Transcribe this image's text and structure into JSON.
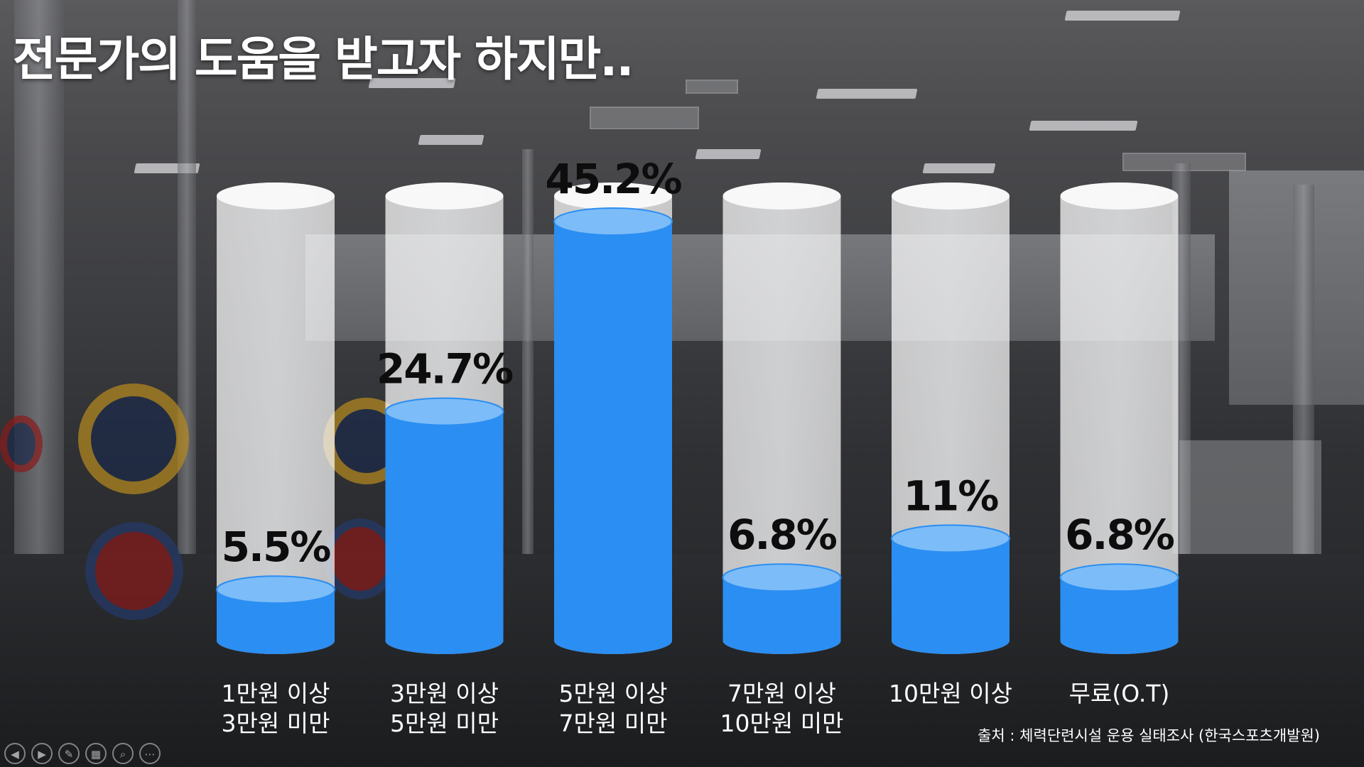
{
  "slide": {
    "title": "전문가의 도움을 받고자 하지만..",
    "source": "출처 : 체력단련시설 운용 실태조사 (한국스포츠개발원)"
  },
  "colors": {
    "fill": "#2b8ef2",
    "fill_top": "#7cbcf8",
    "cylinder_glass": "#f2f3f5",
    "title_text": "#ffffff",
    "value_text": "#0d0d0d"
  },
  "controls": [
    {
      "name": "prev-icon",
      "glyph": "◀"
    },
    {
      "name": "next-icon",
      "glyph": "▶"
    },
    {
      "name": "pen-icon",
      "glyph": "✎"
    },
    {
      "name": "slides-icon",
      "glyph": "▦"
    },
    {
      "name": "zoom-icon",
      "glyph": "⌕"
    },
    {
      "name": "more-icon",
      "glyph": "⋯"
    }
  ],
  "chart_data": {
    "type": "bar",
    "style": "3d-cylinder",
    "categories": [
      [
        "1만원 이상",
        "3만원 미만"
      ],
      [
        "3만원 이상",
        "5만원 미만"
      ],
      [
        "5만원 이상",
        "7만원 미만"
      ],
      [
        "7만원 이상",
        "10만원 미만"
      ],
      [
        "10만원 이상"
      ],
      [
        "무료(O.T)"
      ]
    ],
    "values": [
      5.5,
      24.7,
      45.2,
      6.8,
      11,
      6.8
    ],
    "value_labels": [
      "5.5%",
      "24.7%",
      "45.2%",
      "6.8%",
      "11%",
      "6.8%"
    ],
    "ylim": [
      0,
      100
    ],
    "legend": "none",
    "grid": false
  }
}
